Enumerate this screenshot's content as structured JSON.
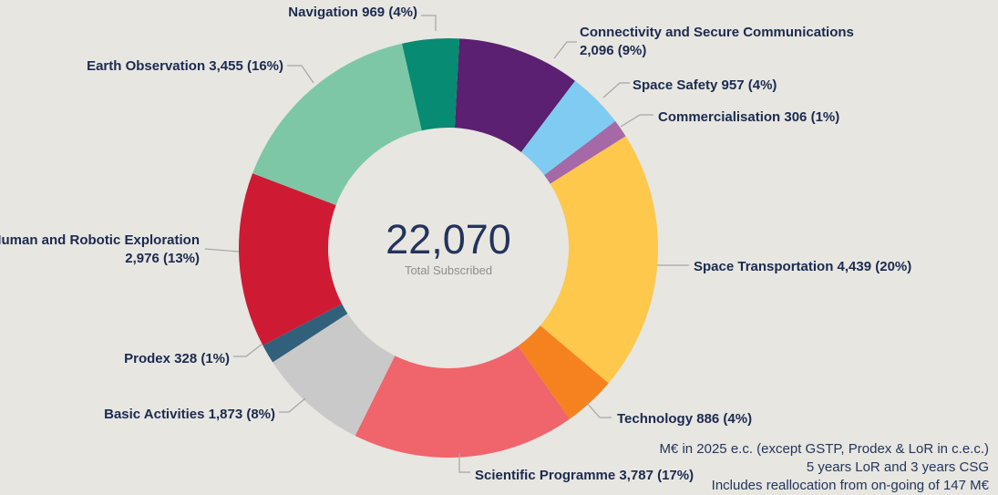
{
  "page": {
    "background_color": "#E7E6E1",
    "text_color": "#1B2A4F"
  },
  "chart_data": {
    "type": "pie",
    "subtype": "donut",
    "legend_position": "callout-labels",
    "start_angle_deg_clockwise_from_top": 3,
    "center_label": {
      "value": "22,070",
      "caption": "Total Subscribed"
    },
    "total_value": 22070,
    "slices": [
      {
        "name": "Connectivity and Secure Communications",
        "value": 2096,
        "value_str": "2,096",
        "pct": "9%",
        "color": "#5B2071",
        "label_lines": [
          "Connectivity and Secure Communications",
          "2,096 (9%)"
        ]
      },
      {
        "name": "Space Safety",
        "value": 957,
        "value_str": "957",
        "pct": "4%",
        "color": "#7FCBF1",
        "label_lines": [
          "Space Safety 957 (4%)"
        ]
      },
      {
        "name": "Commercialisation",
        "value": 306,
        "value_str": "306",
        "pct": "1%",
        "color": "#A569A8",
        "label_lines": [
          "Commercialisation 306 (1%)"
        ]
      },
      {
        "name": "Space Transportation",
        "value": 4439,
        "value_str": "4,439",
        "pct": "20%",
        "color": "#FEC84D",
        "label_lines": [
          "Space Transportation 4,439 (20%)"
        ]
      },
      {
        "name": "Technology",
        "value": 886,
        "value_str": "886",
        "pct": "4%",
        "color": "#F5821F",
        "label_lines": [
          "Technology 886 (4%)"
        ]
      },
      {
        "name": "Scientific Programme",
        "value": 3787,
        "value_str": "3,787",
        "pct": "17%",
        "color": "#F0646B",
        "label_lines": [
          "Scientific Programme 3,787 (17%)"
        ]
      },
      {
        "name": "Basic Activities",
        "value": 1873,
        "value_str": "1,873",
        "pct": "8%",
        "color": "#C9C9C9",
        "label_lines": [
          "Basic Activities 1,873 (8%)"
        ]
      },
      {
        "name": "Prodex",
        "value": 328,
        "value_str": "328",
        "pct": "1%",
        "color": "#31607A",
        "label_lines": [
          "Prodex 328 (1%)"
        ]
      },
      {
        "name": "Human and Robotic Exploration",
        "value": 2976,
        "value_str": "2,976",
        "pct": "13%",
        "color": "#CF1A34",
        "label_lines": [
          "Human and Robotic Exploration",
          "2,976 (13%)"
        ]
      },
      {
        "name": "Earth Observation",
        "value": 3455,
        "value_str": "3,455",
        "pct": "16%",
        "color": "#7EC7A6",
        "label_lines": [
          "Earth Observation 3,455 (16%)"
        ]
      },
      {
        "name": "Navigation",
        "value": 969,
        "value_str": "969",
        "pct": "4%",
        "color": "#078B72",
        "label_lines": [
          "Navigation 969 (4%)"
        ]
      }
    ],
    "footnotes": [
      "M€ in 2025 e.c. (except GSTP, Prodex & LoR in c.e.c.)",
      "5 years LoR and 3 years CSG",
      "Includes reallocation from on-going of 147 M€"
    ],
    "leader_line_color": "#A6A6A6"
  }
}
